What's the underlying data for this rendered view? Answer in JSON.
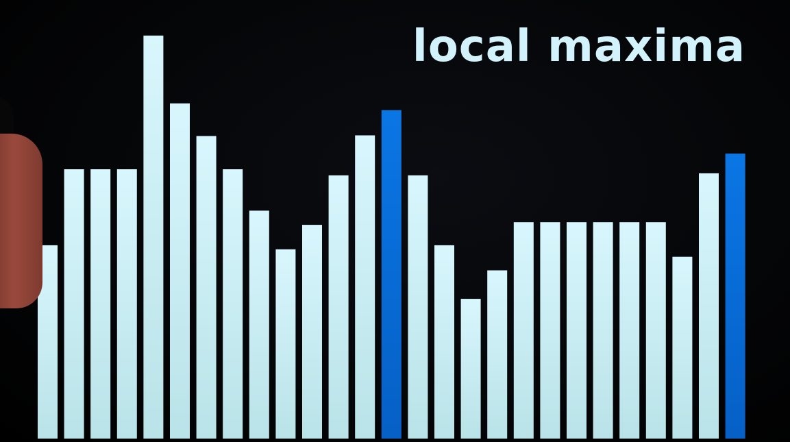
{
  "chart_data": {
    "type": "bar",
    "title": "local maxima",
    "xlabel": "",
    "ylabel": "",
    "ylim": [
      0,
      600
    ],
    "grid": false,
    "legend": "none",
    "values": [
      285,
      397,
      397,
      397,
      594,
      494,
      446,
      397,
      336,
      279,
      315,
      388,
      447,
      484,
      388,
      285,
      206,
      248,
      319,
      319,
      319,
      319,
      319,
      319,
      268,
      391,
      420
    ],
    "highlighted_indices": [
      13,
      26
    ],
    "colors": {
      "bar": "#d2f3fb",
      "bar_bottom": "#b8e4ea",
      "highlight": "#0a74e0",
      "background": "#000000"
    }
  }
}
